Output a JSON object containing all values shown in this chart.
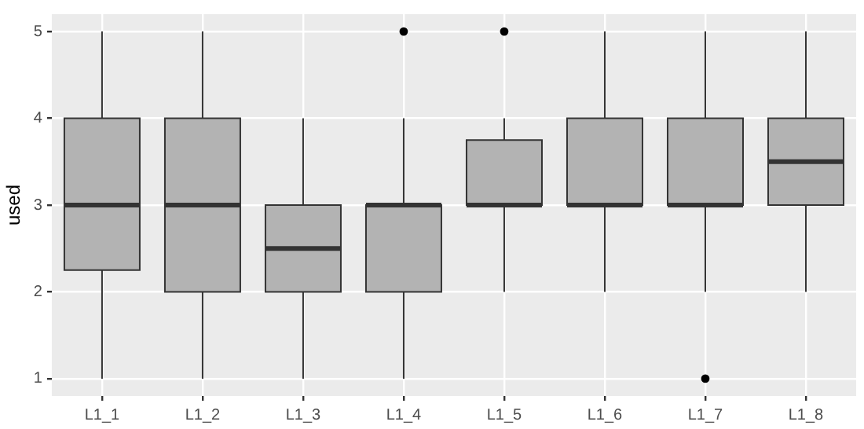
{
  "chart_data": {
    "type": "box",
    "ylabel": "used",
    "categories": [
      "L1_1",
      "L1_2",
      "L1_3",
      "L1_4",
      "L1_5",
      "L1_6",
      "L1_7",
      "L1_8"
    ],
    "boxes": [
      {
        "low": 1,
        "q1": 2.25,
        "median": 3,
        "q3": 4,
        "high": 5
      },
      {
        "low": 1,
        "q1": 2,
        "median": 3,
        "q3": 4,
        "high": 5
      },
      {
        "low": 1,
        "q1": 2,
        "median": 2.5,
        "q3": 3,
        "high": 4
      },
      {
        "low": 1,
        "q1": 2,
        "median": 3,
        "q3": 3,
        "high": 4,
        "outliers": [
          5
        ]
      },
      {
        "low": 2,
        "q1": 3,
        "median": 3,
        "q3": 3.75,
        "high": 4,
        "outliers": [
          5
        ]
      },
      {
        "low": 2,
        "q1": 3,
        "median": 3,
        "q3": 4,
        "high": 5
      },
      {
        "low": 2,
        "q1": 3,
        "median": 3,
        "q3": 4,
        "high": 5,
        "outliers": [
          1
        ]
      },
      {
        "low": 2,
        "q1": 3,
        "median": 3.5,
        "q3": 4,
        "high": 5
      }
    ],
    "color": "#b3b3b3",
    "ylim": [
      0.8,
      5.2
    ],
    "yticks": [
      1,
      2,
      3,
      4,
      5
    ],
    "grid": true
  }
}
